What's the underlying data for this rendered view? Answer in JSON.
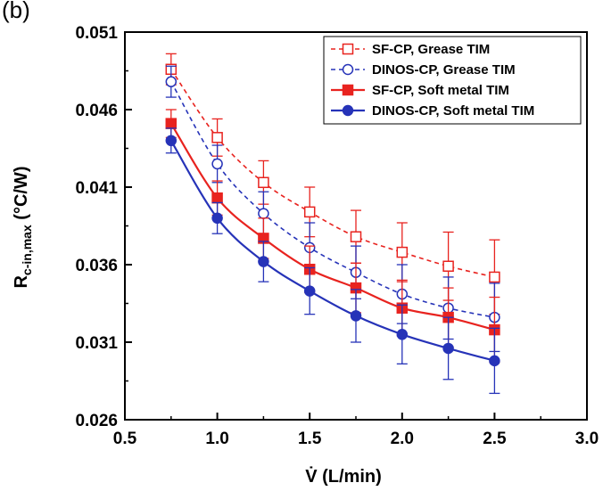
{
  "panel_label": "(b)",
  "chart_data": {
    "type": "line",
    "title": "",
    "xlabel": "V̇ (L/min)",
    "ylabel_main": "R",
    "ylabel_sub": "c-in,max",
    "ylabel_unit": " (°C/W)",
    "xlim": [
      0.5,
      3.0
    ],
    "ylim": [
      0.026,
      0.051
    ],
    "xticks": [
      0.5,
      1.0,
      1.5,
      2.0,
      2.5,
      3.0
    ],
    "xtick_labels": [
      "0.5",
      "1.0",
      "1.5",
      "2.0",
      "2.5",
      "3.0"
    ],
    "yticks": [
      0.026,
      0.031,
      0.036,
      0.041,
      0.046,
      0.051
    ],
    "ytick_labels": [
      "0.026",
      "0.031",
      "0.036",
      "0.041",
      "0.046",
      "0.051"
    ],
    "grid": false,
    "legend_position": "top-right",
    "x": [
      0.75,
      1.0,
      1.25,
      1.5,
      1.75,
      2.0,
      2.25,
      2.5
    ],
    "series": [
      {
        "name": "SF-CP, Grease TIM",
        "color": "#e8231f",
        "dashed": true,
        "marker": "square-open",
        "values": [
          0.0486,
          0.0442,
          0.0413,
          0.0394,
          0.0378,
          0.0368,
          0.0359,
          0.0352
        ],
        "errors": [
          0.001,
          0.0012,
          0.0014,
          0.0016,
          0.0017,
          0.0019,
          0.0022,
          0.0024
        ]
      },
      {
        "name": "DINOS-CP, Grease TIM",
        "color": "#2633b8",
        "dashed": true,
        "marker": "circle-open",
        "values": [
          0.0478,
          0.0425,
          0.0393,
          0.0371,
          0.0355,
          0.0341,
          0.0332,
          0.0326
        ],
        "errors": [
          0.001,
          0.0012,
          0.0014,
          0.0016,
          0.0017,
          0.0019,
          0.002,
          0.0022
        ]
      },
      {
        "name": "SF-CP, Soft metal TIM",
        "color": "#e8231f",
        "dashed": false,
        "marker": "square-filled",
        "values": [
          0.0451,
          0.0403,
          0.0377,
          0.0357,
          0.0345,
          0.0332,
          0.0326,
          0.0318
        ],
        "errors": [
          0.0009,
          0.0011,
          0.0013,
          0.0015,
          0.0016,
          0.0018,
          0.0019,
          0.0021
        ]
      },
      {
        "name": "DINOS-CP, Soft metal TIM",
        "color": "#2633b8",
        "dashed": false,
        "marker": "circle-filled",
        "values": [
          0.044,
          0.039,
          0.0362,
          0.0343,
          0.0327,
          0.0315,
          0.0306,
          0.0298
        ],
        "errors": [
          0.0008,
          0.001,
          0.0013,
          0.0015,
          0.0017,
          0.0019,
          0.002,
          0.0021
        ]
      }
    ]
  }
}
